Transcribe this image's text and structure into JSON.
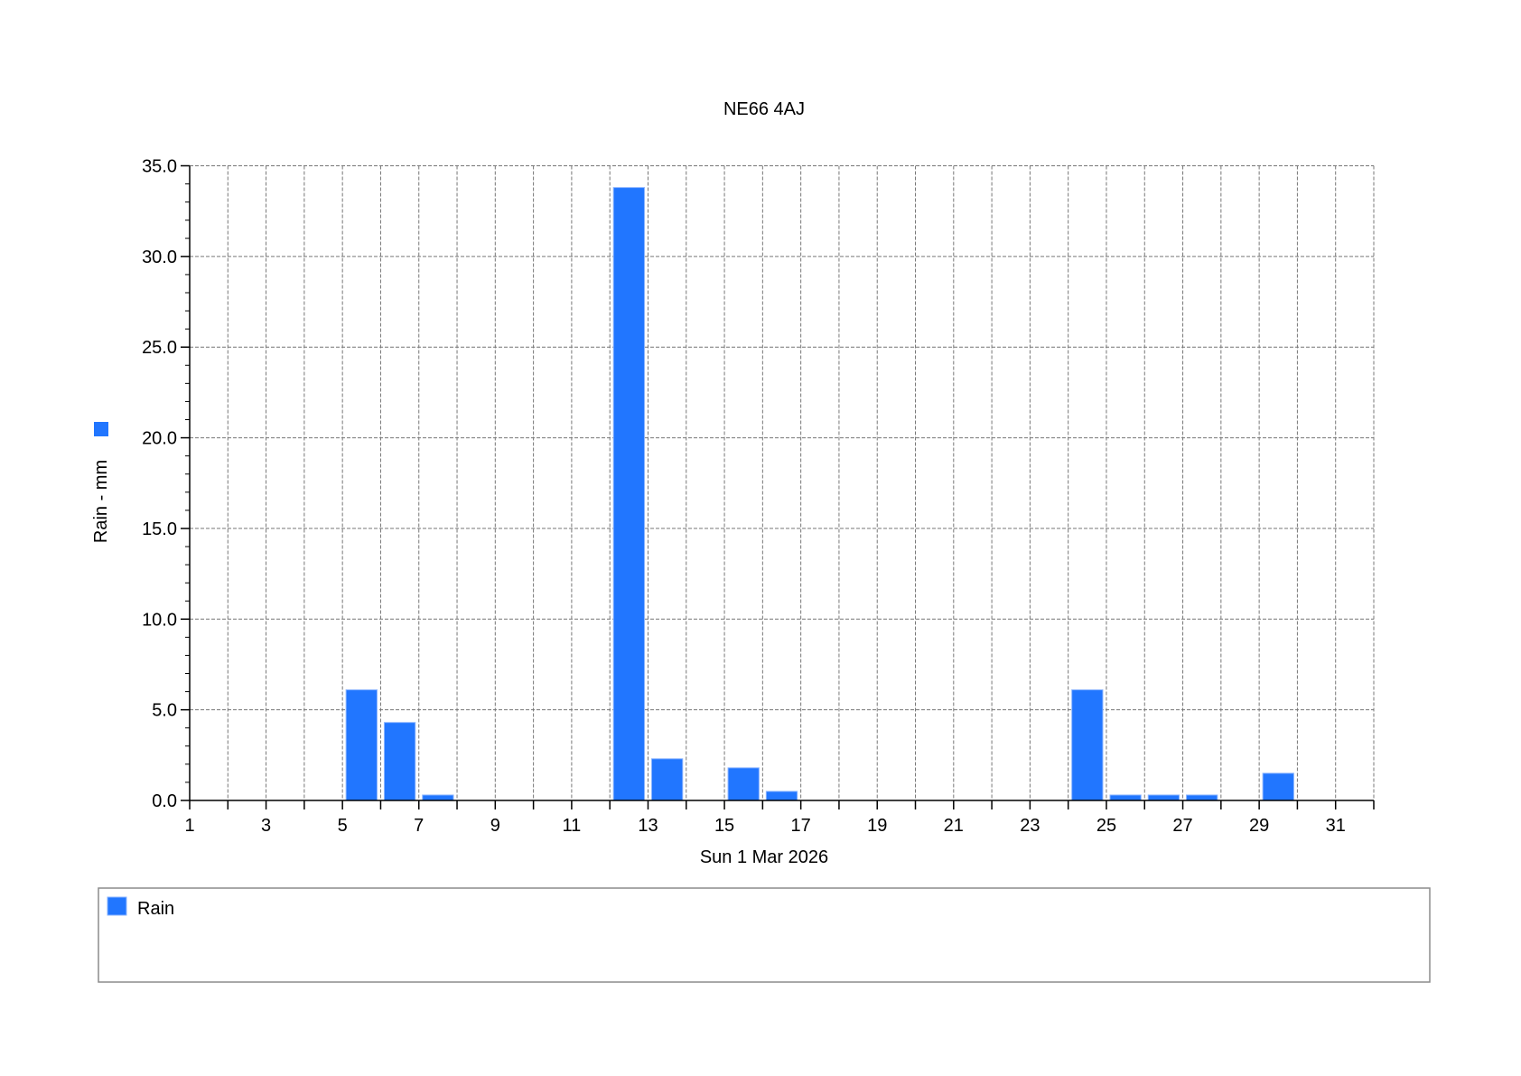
{
  "chart_data": {
    "type": "bar",
    "title": "NE66 4AJ",
    "xlabel": "Sun 1 Mar 2026",
    "ylabel": "Rain - mm",
    "ylim": [
      0,
      35
    ],
    "xlim": [
      1,
      32
    ],
    "yticks": [
      "0.0",
      "5.0",
      "10.0",
      "15.0",
      "20.0",
      "25.0",
      "30.0",
      "35.0"
    ],
    "xticks": [
      "1",
      "3",
      "5",
      "7",
      "9",
      "11",
      "13",
      "15",
      "17",
      "19",
      "21",
      "23",
      "25",
      "27",
      "29",
      "31"
    ],
    "grid": true,
    "legend_position": "bottom",
    "series": [
      {
        "name": "Rain",
        "color": "#2176ff",
        "x": [
          5,
          6,
          7,
          12,
          13,
          15,
          16,
          24,
          25,
          26,
          27,
          29
        ],
        "values": [
          6.1,
          4.3,
          0.3,
          33.8,
          2.3,
          1.8,
          0.5,
          6.1,
          0.3,
          0.3,
          0.3,
          1.5
        ]
      }
    ]
  }
}
